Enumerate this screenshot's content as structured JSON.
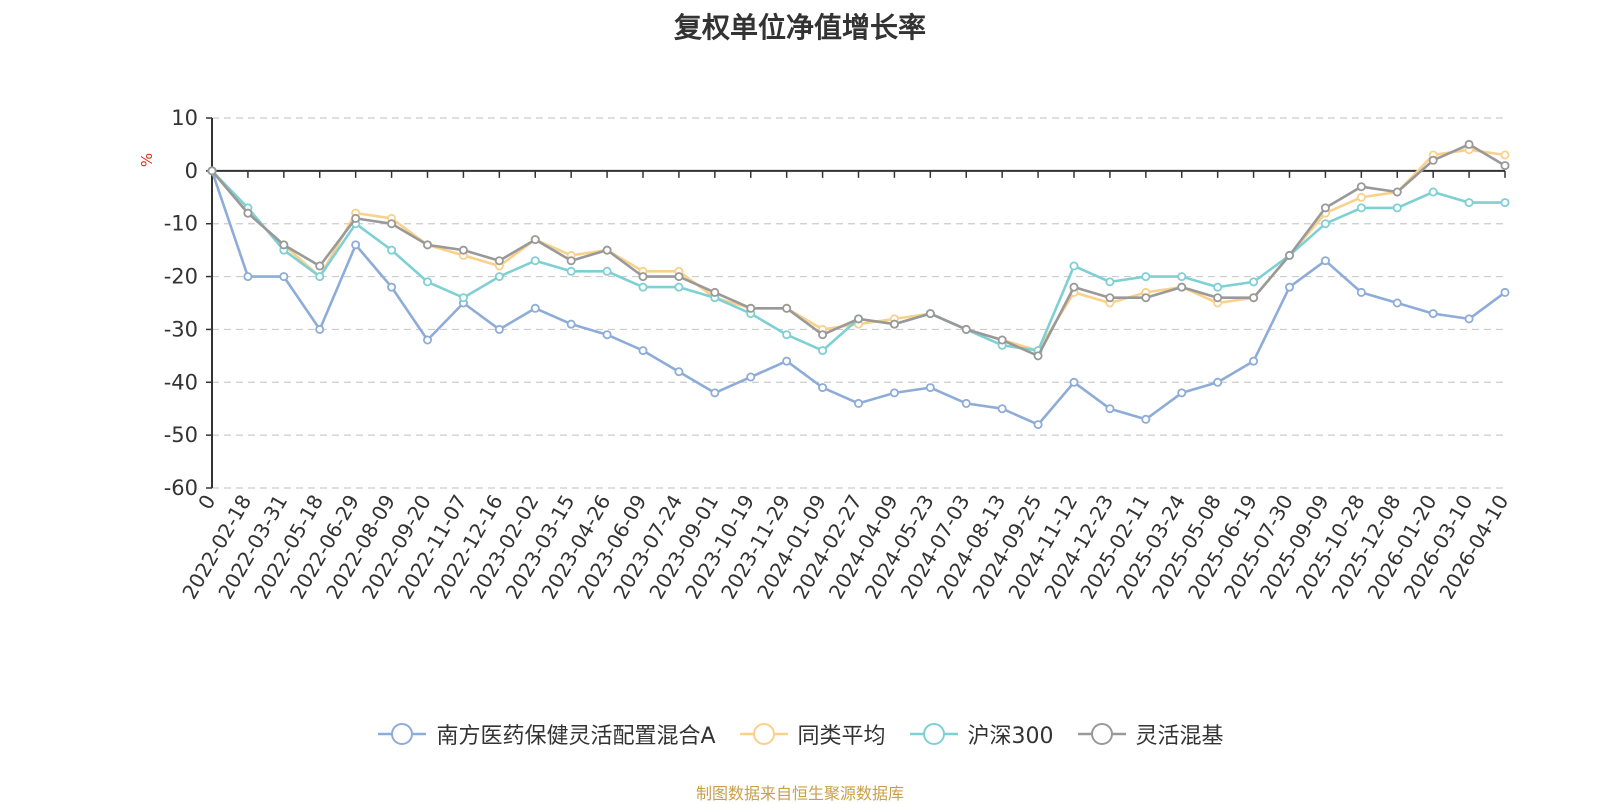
{
  "chart_data": {
    "type": "line",
    "title": "复权单位净值增长率",
    "ylabel": "%",
    "ylim": [
      -60,
      10
    ],
    "yticks": [
      10,
      0,
      -10,
      -20,
      -30,
      -40,
      -50,
      -60
    ],
    "x_labels": [
      "0",
      "2022-02-18",
      "2022-03-31",
      "2022-05-18",
      "2022-06-29",
      "2022-08-09",
      "2022-09-20",
      "2022-11-07",
      "2022-12-16",
      "2023-02-02",
      "2023-03-15",
      "2023-04-26",
      "2023-06-09",
      "2023-07-24",
      "2023-09-01",
      "2023-10-19",
      "2023-11-29",
      "2024-01-09",
      "2024-02-27",
      "2024-04-09",
      "2024-05-23",
      "2024-07-03",
      "2024-08-13",
      "2024-09-25",
      "2024-11-12",
      "2024-12-23",
      "2025-02-11",
      "2025-03-24",
      "2025-05-08",
      "2025-06-19",
      "2025-07-30",
      "2025-09-09",
      "2025-10-28",
      "2025-12-08",
      "2026-01-20",
      "2026-03-10",
      "2026-04-10"
    ],
    "grid": true,
    "legend_position": "bottom-center",
    "series": [
      {
        "name": "南方医药保健灵活配置混合A",
        "color": "#8eacd8",
        "values": [
          0,
          -20,
          -20,
          -30,
          -14,
          -22,
          -32,
          -25,
          -30,
          -26,
          -29,
          -31,
          -34,
          -38,
          -42,
          -39,
          -36,
          -41,
          -44,
          -42,
          -41,
          -44,
          -45,
          -48,
          -40,
          -45,
          -47,
          -42,
          -40,
          -36,
          -22,
          -17,
          -23,
          -25,
          -27,
          -28,
          -23
        ]
      },
      {
        "name": "同类平均",
        "color": "#f9d18b",
        "values": [
          0,
          -8,
          -14,
          -20,
          -8,
          -9,
          -14,
          -16,
          -18,
          -13,
          -16,
          -15,
          -19,
          -19,
          -24,
          -26,
          -26,
          -30,
          -29,
          -28,
          -27,
          -30,
          -32,
          -34,
          -23,
          -25,
          -23,
          -22,
          -25,
          -24,
          -16,
          -8,
          -5,
          -4,
          3,
          4,
          3
        ]
      },
      {
        "name": "沪深300",
        "color": "#7fd0d4",
        "values": [
          0,
          -7,
          -15,
          -20,
          -10,
          -15,
          -21,
          -24,
          -20,
          -17,
          -19,
          -19,
          -22,
          -22,
          -24,
          -27,
          -31,
          -34,
          -28,
          -29,
          -27,
          -30,
          -33,
          -34,
          -18,
          -21,
          -20,
          -20,
          -22,
          -21,
          -16,
          -10,
          -7,
          -7,
          -4,
          -6,
          -6
        ]
      },
      {
        "name": "灵活混基",
        "color": "#999999",
        "values": [
          0,
          -8,
          -14,
          -18,
          -9,
          -10,
          -14,
          -15,
          -17,
          -13,
          -17,
          -15,
          -20,
          -20,
          -23,
          -26,
          -26,
          -31,
          -28,
          -29,
          -27,
          -30,
          -32,
          -35,
          -22,
          -24,
          -24,
          -22,
          -24,
          -24,
          -16,
          -7,
          -3,
          -4,
          2,
          5,
          1
        ]
      }
    ]
  },
  "source_text": "制图数据来自恒生聚源数据库"
}
